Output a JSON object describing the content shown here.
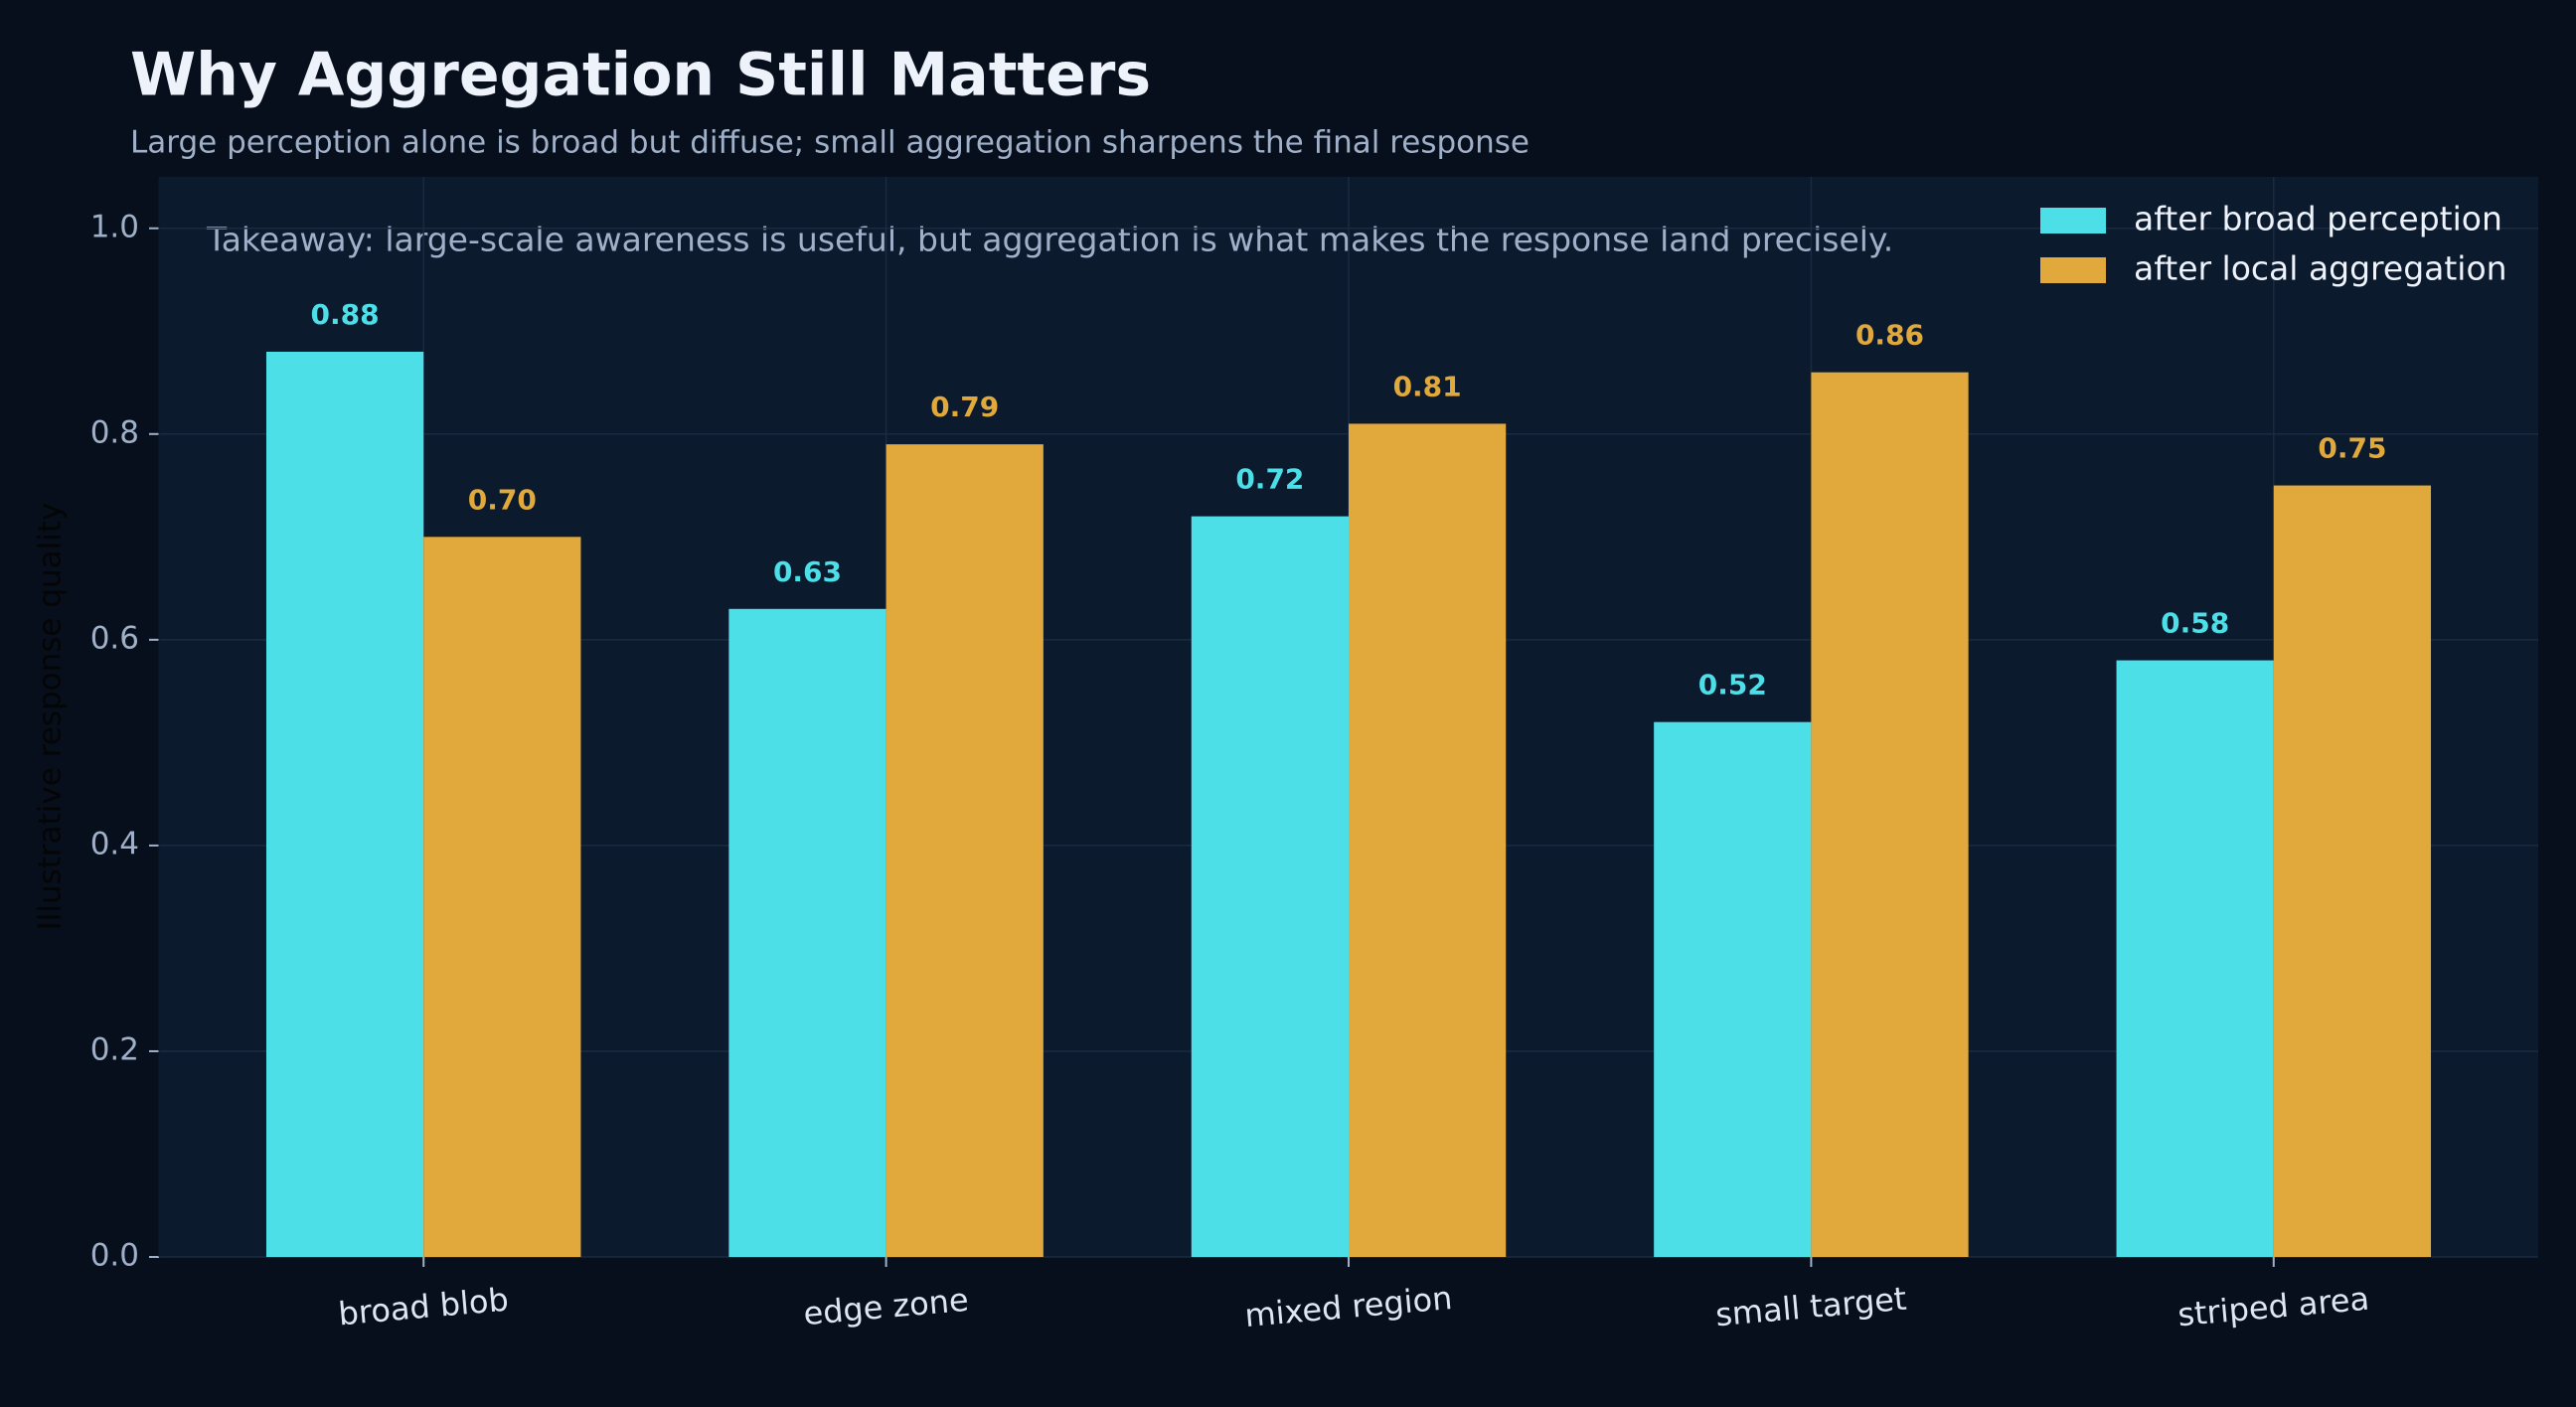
{
  "chart_data": {
    "type": "bar",
    "title": "Why Aggregation Still Matters",
    "subtitle": "Large perception alone is broad but diffuse; small aggregation sharpens the final response",
    "annotation": "Takeaway: large-scale awareness is useful, but aggregation is what makes the response land precisely.",
    "y_label": "Illustrative response quality",
    "categories": [
      "broad blob",
      "edge zone",
      "mixed region",
      "small target",
      "striped area"
    ],
    "series": [
      {
        "name": "after broad perception",
        "color": "#4ddfe8",
        "values": [
          0.88,
          0.63,
          0.72,
          0.52,
          0.58
        ],
        "value_labels": [
          "0.88",
          "0.63",
          "0.72",
          "0.52",
          "0.58"
        ]
      },
      {
        "name": "after local aggregation",
        "color": "#e1a93b",
        "values": [
          0.7,
          0.79,
          0.81,
          0.86,
          0.75
        ],
        "value_labels": [
          "0.70",
          "0.79",
          "0.81",
          "0.86",
          "0.75"
        ]
      }
    ],
    "ylim": [
      0,
      1.05
    ],
    "yticks": [
      {
        "value": 0,
        "label": "0.0"
      },
      0.2,
      0.4,
      0.6,
      0.8,
      {
        "value": 1,
        "label": "1.0"
      }
    ],
    "grid": true,
    "legend": "upper right"
  }
}
